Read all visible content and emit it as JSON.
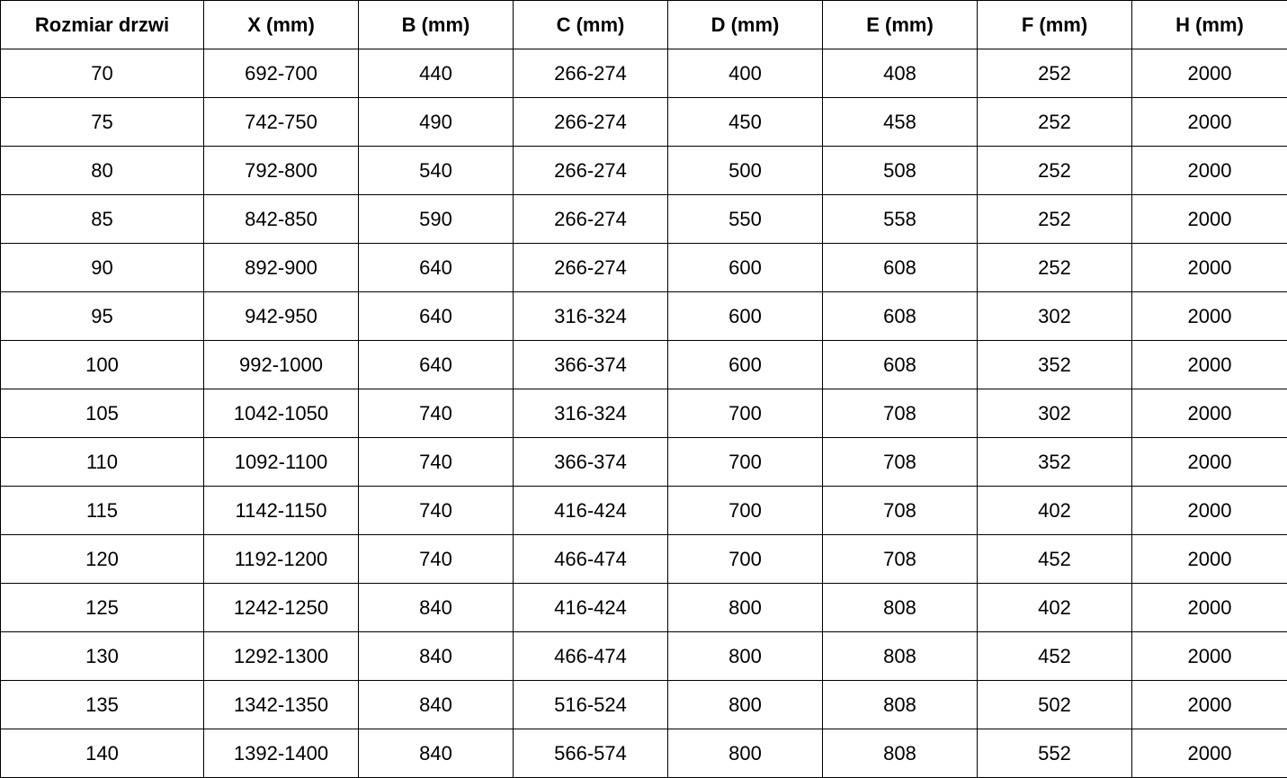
{
  "headers": [
    "Rozmiar drzwi",
    "X (mm)",
    "B (mm)",
    "C (mm)",
    "D (mm)",
    "E (mm)",
    "F (mm)",
    "H (mm)"
  ],
  "rows": [
    [
      "70",
      "692-700",
      "440",
      "266-274",
      "400",
      "408",
      "252",
      "2000"
    ],
    [
      "75",
      "742-750",
      "490",
      "266-274",
      "450",
      "458",
      "252",
      "2000"
    ],
    [
      "80",
      "792-800",
      "540",
      "266-274",
      "500",
      "508",
      "252",
      "2000"
    ],
    [
      "85",
      "842-850",
      "590",
      "266-274",
      "550",
      "558",
      "252",
      "2000"
    ],
    [
      "90",
      "892-900",
      "640",
      "266-274",
      "600",
      "608",
      "252",
      "2000"
    ],
    [
      "95",
      "942-950",
      "640",
      "316-324",
      "600",
      "608",
      "302",
      "2000"
    ],
    [
      "100",
      "992-1000",
      "640",
      "366-374",
      "600",
      "608",
      "352",
      "2000"
    ],
    [
      "105",
      "1042-1050",
      "740",
      "316-324",
      "700",
      "708",
      "302",
      "2000"
    ],
    [
      "110",
      "1092-1100",
      "740",
      "366-374",
      "700",
      "708",
      "352",
      "2000"
    ],
    [
      "115",
      "1142-1150",
      "740",
      "416-424",
      "700",
      "708",
      "402",
      "2000"
    ],
    [
      "120",
      "1192-1200",
      "740",
      "466-474",
      "700",
      "708",
      "452",
      "2000"
    ],
    [
      "125",
      "1242-1250",
      "840",
      "416-424",
      "800",
      "808",
      "402",
      "2000"
    ],
    [
      "130",
      "1292-1300",
      "840",
      "466-474",
      "800",
      "808",
      "452",
      "2000"
    ],
    [
      "135",
      "1342-1350",
      "840",
      "516-524",
      "800",
      "808",
      "502",
      "2000"
    ],
    [
      "140",
      "1392-1400",
      "840",
      "566-574",
      "800",
      "808",
      "552",
      "2000"
    ]
  ]
}
